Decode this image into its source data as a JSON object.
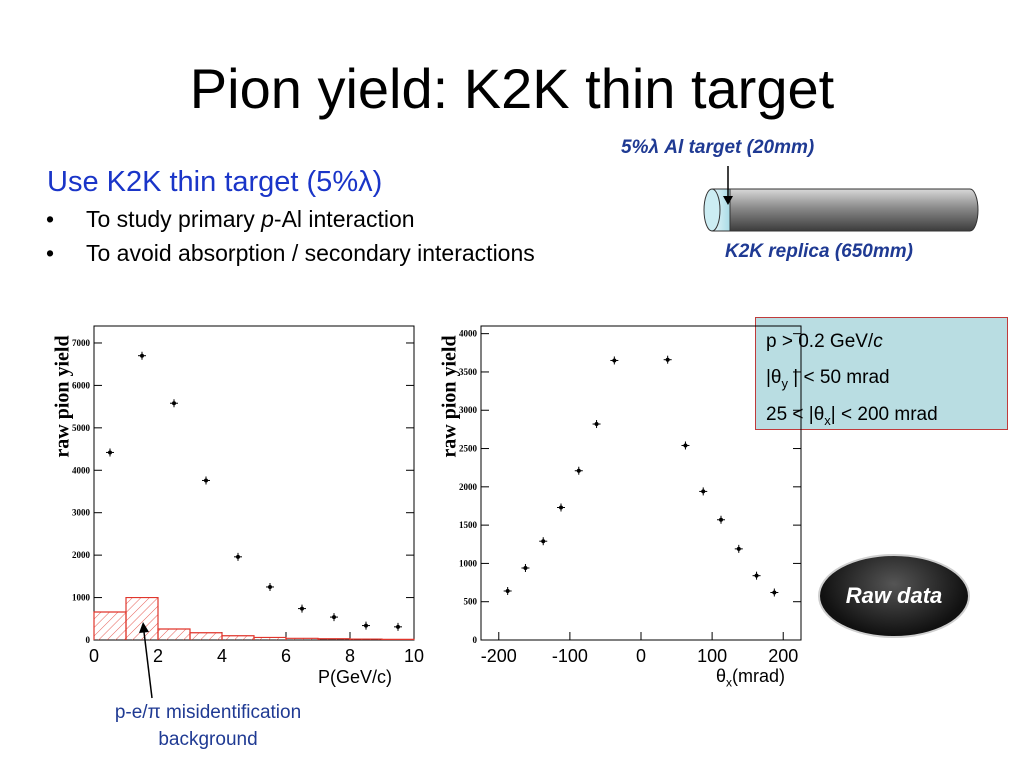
{
  "title": "Pion yield: K2K thin target",
  "subtitle": "Use K2K thin target (5%λ)",
  "bullets": [
    "To study primary p-Al interaction",
    "To avoid absorption / secondary interactions"
  ],
  "bullet_1_pre": "To study primary ",
  "bullet_1_italic": "p",
  "bullet_1_post": "-Al interaction",
  "bullet_2": "To avoid absorption / secondary interactions",
  "target_label": "5%λ Al target (20mm)",
  "replica_label": "K2K replica (650mm)",
  "cuts": {
    "line1_pre": "p > 0.2 GeV/",
    "line1_italic": "c",
    "line2_a": "|θ",
    "line2_sub": "y",
    "line2_b": " | < 50 mrad",
    "line3_a": "25 < |θ",
    "line3_sub": "x",
    "line3_b": "| < 200 mrad"
  },
  "raw_badge": "Raw data",
  "background_label_line1": "p-e/π misidentification",
  "background_label_line2": "background",
  "colors": {
    "title_blue": "#1a35c8",
    "label_blue": "#1f3a93",
    "box_fill": "#b9dde2",
    "hist_red": "#e0362c"
  },
  "chart_data": [
    {
      "type": "scatter",
      "xlabel": "P(GeV/c)",
      "ylabel": "raw pion yield",
      "xlim": [
        0,
        10
      ],
      "ylim": [
        0,
        7400
      ],
      "x_tick_labels": [
        "0",
        "2",
        "4",
        "6",
        "8",
        "10"
      ],
      "y_tick_labels": [
        "0",
        "1000",
        "2000",
        "3000",
        "4000",
        "5000",
        "6000",
        "7000"
      ],
      "x_ticks": [
        0,
        2,
        4,
        6,
        8,
        10
      ],
      "y_ticks": [
        0,
        1000,
        2000,
        3000,
        4000,
        5000,
        6000,
        7000
      ],
      "series": [
        {
          "x": [
            0.5,
            1.5,
            2.5,
            3.5,
            4.5,
            5.5,
            6.5,
            7.5,
            8.5,
            9.5
          ],
          "values": [
            4420,
            6700,
            5580,
            3760,
            1960,
            1250,
            740,
            540,
            340,
            310
          ]
        }
      ],
      "background_hist": {
        "edges": [
          0,
          1,
          2,
          3,
          4,
          5,
          6,
          7,
          8,
          9,
          10
        ],
        "values": [
          660,
          1000,
          260,
          170,
          100,
          60,
          40,
          30,
          20,
          15
        ]
      }
    },
    {
      "type": "scatter",
      "xlabel": "θx(mrad)",
      "xlabel_a": "θ",
      "xlabel_sub": "x",
      "xlabel_b": "(mrad)",
      "ylabel": "raw pion yield",
      "xlim": [
        -225,
        225
      ],
      "ylim": [
        0,
        4100
      ],
      "x_tick_labels": [
        "-200",
        "-100",
        "0",
        "100",
        "200"
      ],
      "y_tick_labels": [
        "0",
        "500",
        "1000",
        "1500",
        "2000",
        "2500",
        "3000",
        "3500",
        "4000"
      ],
      "x_ticks": [
        -200,
        -100,
        0,
        100,
        200
      ],
      "y_ticks": [
        0,
        500,
        1000,
        1500,
        2000,
        2500,
        3000,
        3500,
        4000
      ],
      "series": [
        {
          "x": [
            -187.5,
            -162.5,
            -137.5,
            -112.5,
            -87.5,
            -62.5,
            -37.5,
            37.5,
            62.5,
            87.5,
            112.5,
            137.5,
            162.5,
            187.5
          ],
          "values": [
            640,
            940,
            1290,
            1730,
            2210,
            2820,
            3650,
            3660,
            2540,
            1940,
            1570,
            1190,
            840,
            620
          ]
        }
      ]
    }
  ]
}
